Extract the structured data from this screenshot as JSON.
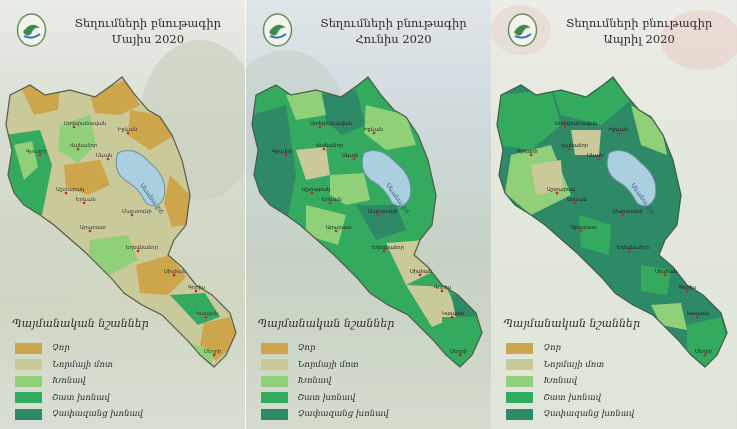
{
  "colors": {
    "dry": "#cda54a",
    "near_normal": "#c9c99a",
    "humid": "#8fd079",
    "very_humid": "#33aa5e",
    "extremely_humid": "#2e8a66"
  },
  "panels": [
    {
      "title_line1": "Տեղումների բնութագիր",
      "title_line2": "Մայիս 2020",
      "city_labels": [
        "Ստեփանավան",
        "Գյումրի",
        "Վանաձոր",
        "Իջևան",
        "Սևան",
        "Աշտարակ",
        "Երևան",
        "Մարտունի",
        "Արարատ",
        "Եղեգնաձոր",
        "Սիսիան",
        "Գորիս",
        "Կապան",
        "Մեղրի"
      ],
      "lake_label": "Սևանա լիճ",
      "legend_title": "Պայմանական նշաններ",
      "legend": [
        "Չոր",
        "Նորմայի մոտ",
        "Խոնավ",
        "Շատ խոնավ",
        "Չափազանց խոնավ"
      ]
    },
    {
      "title_line1": "Տեղումների բնութագիր",
      "title_line2": "Հունիս 2020",
      "city_labels": [
        "Ստեփանավան",
        "Գյումրի",
        "Վանաձոր",
        "Իջևան",
        "Սևան",
        "Աշտարակ",
        "Երևան",
        "Մարտունի",
        "Արարատ",
        "Եղեգնաձոր",
        "Սիսիան",
        "Գորիս",
        "Կապան",
        "Մեղրի"
      ],
      "lake_label": "Սևանա լիճ",
      "legend_title": "Պայմանական նշաններ",
      "legend": [
        "Չոր",
        "Նորմայի մոտ",
        "Խոնավ",
        "Շատ խոնավ",
        "Չափազանց խոնավ"
      ]
    },
    {
      "title_line1": "Տեղումների բնութագիր",
      "title_line2": "Ապրիլ 2020",
      "city_labels": [
        "Ստեփանավան",
        "Գյումրի",
        "Վանաձոր",
        "Իջևան",
        "Սևան",
        "Աշտարակ",
        "Երևան",
        "Մարտունի",
        "Արարատ",
        "Եղեգնաձոր",
        "Սիսիան",
        "Գորիս",
        "Կապան",
        "Մեղրի"
      ],
      "lake_label": "Սևանա լիճ",
      "legend_title": "Պայմանական նշաններ",
      "legend": [
        "Չոր",
        "Նորմայի մոտ",
        "Խոնավ",
        "Շատ խոնավ",
        "Չափազանց խոնավ"
      ]
    }
  ]
}
